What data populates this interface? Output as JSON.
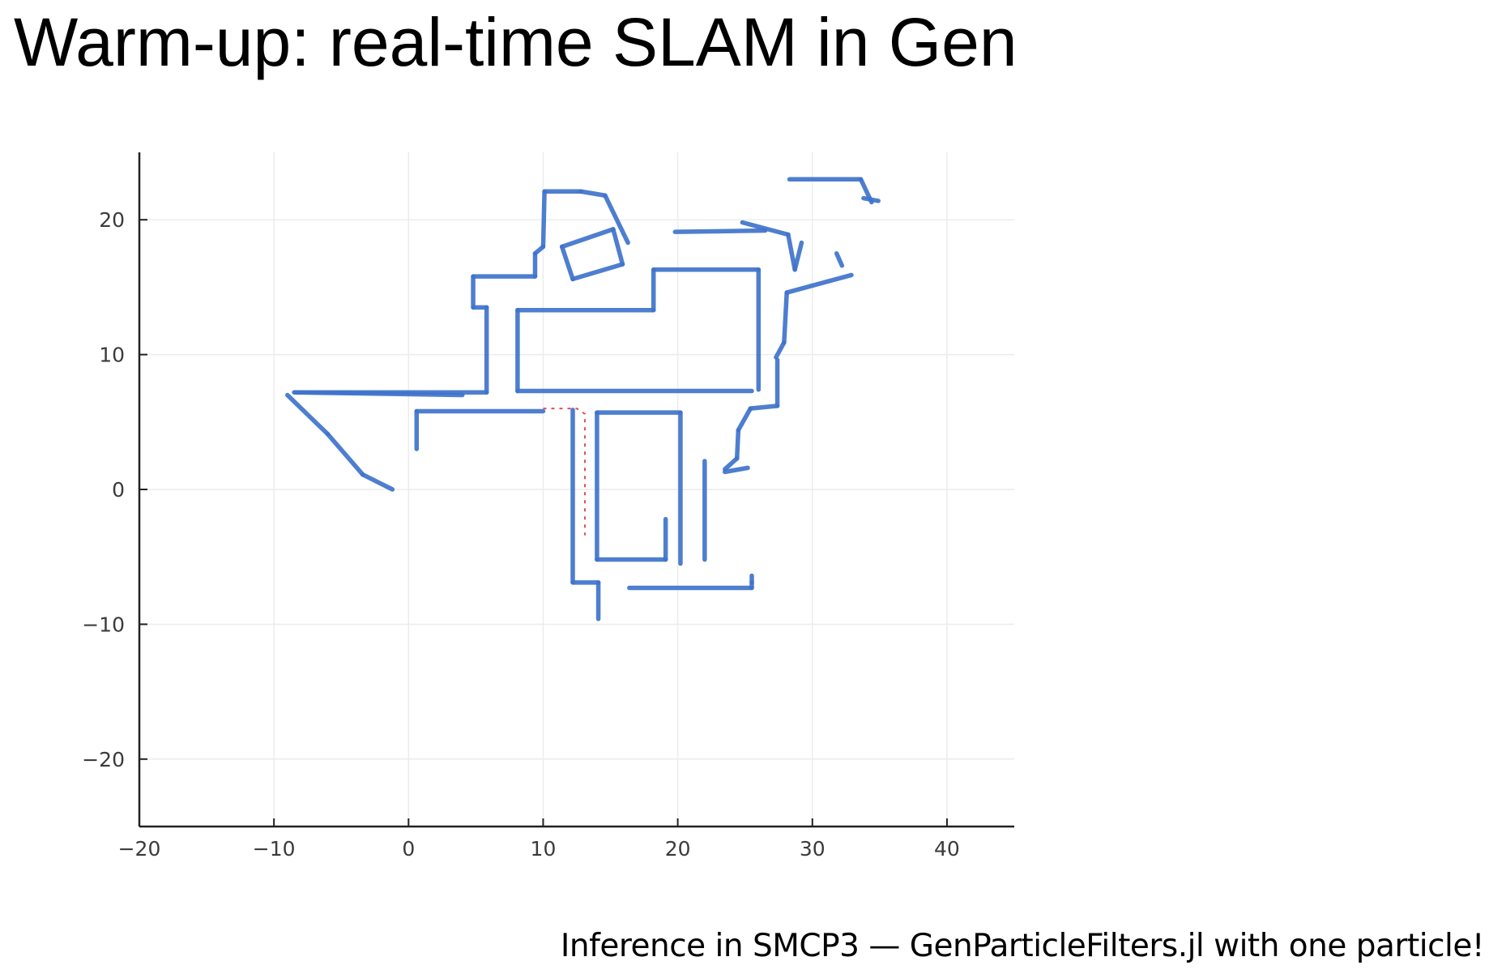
{
  "slide": {
    "title": "Warm-up: real-time SLAM in Gen",
    "caption": "Inference in SMCP3 — GenParticleFilters.jl with one particle!"
  },
  "colors": {
    "map_walls": "#3f74cc",
    "trajectory": "#e05050",
    "axis": "#222222",
    "grid": "#ececec"
  },
  "chart_data": {
    "type": "scatter",
    "title": "",
    "xlabel": "",
    "ylabel": "",
    "xlim": [
      -20,
      45
    ],
    "ylim": [
      -25,
      25
    ],
    "grid": true,
    "legend": "none",
    "x_ticks": [
      -20,
      -10,
      0,
      10,
      20,
      30,
      40
    ],
    "y_ticks": [
      -20,
      -10,
      0,
      10,
      20
    ],
    "x_tick_labels": [
      "−20",
      "−10",
      "0",
      "10",
      "20",
      "30",
      "40"
    ],
    "y_tick_labels": [
      "−20",
      "−10",
      "0",
      "10",
      "20"
    ],
    "series": [
      {
        "kind": "map_wall_segments",
        "segments": [
          [
            [
              -8.5,
              7.2
            ],
            [
              5.8,
              7.2
            ]
          ],
          [
            [
              5.8,
              7.2
            ],
            [
              5.8,
              13.5
            ]
          ],
          [
            [
              4.8,
              13.5
            ],
            [
              5.8,
              13.5
            ]
          ],
          [
            [
              4.8,
              13.5
            ],
            [
              4.8,
              15.8
            ]
          ],
          [
            [
              4.8,
              15.8
            ],
            [
              9.4,
              15.8
            ]
          ],
          [
            [
              9.4,
              15.8
            ],
            [
              9.4,
              17.5
            ]
          ],
          [
            [
              9.4,
              17.5
            ],
            [
              10.0,
              18.0
            ]
          ],
          [
            [
              10.0,
              18.0
            ],
            [
              10.1,
              22.1
            ]
          ],
          [
            [
              10.1,
              22.1
            ],
            [
              12.8,
              22.1
            ]
          ],
          [
            [
              12.8,
              22.1
            ],
            [
              14.6,
              21.8
            ]
          ],
          [
            [
              14.6,
              21.8
            ],
            [
              16.3,
              18.3
            ]
          ],
          [
            [
              11.4,
              18.0
            ],
            [
              15.2,
              19.3
            ]
          ],
          [
            [
              15.2,
              19.3
            ],
            [
              15.9,
              16.7
            ]
          ],
          [
            [
              15.9,
              16.7
            ],
            [
              12.2,
              15.6
            ]
          ],
          [
            [
              12.2,
              15.6
            ],
            [
              11.4,
              18.0
            ]
          ],
          [
            [
              8.1,
              13.3
            ],
            [
              18.2,
              13.3
            ]
          ],
          [
            [
              18.2,
              13.3
            ],
            [
              18.2,
              16.3
            ]
          ],
          [
            [
              18.2,
              16.3
            ],
            [
              26.0,
              16.3
            ]
          ],
          [
            [
              26.0,
              16.3
            ],
            [
              26.0,
              7.4
            ]
          ],
          [
            [
              8.1,
              13.3
            ],
            [
              8.1,
              7.3
            ]
          ],
          [
            [
              8.1,
              7.3
            ],
            [
              25.5,
              7.3
            ]
          ],
          [
            [
              0.6,
              5.8
            ],
            [
              10.0,
              5.8
            ]
          ],
          [
            [
              0.6,
              5.8
            ],
            [
              0.6,
              3.0
            ]
          ],
          [
            [
              12.2,
              5.9
            ],
            [
              12.2,
              -6.9
            ]
          ],
          [
            [
              12.2,
              -6.9
            ],
            [
              14.1,
              -6.9
            ]
          ],
          [
            [
              14.1,
              -6.9
            ],
            [
              14.1,
              -9.6
            ]
          ],
          [
            [
              14.0,
              5.7
            ],
            [
              20.2,
              5.7
            ]
          ],
          [
            [
              20.2,
              5.7
            ],
            [
              20.2,
              -5.5
            ]
          ],
          [
            [
              14.0,
              5.7
            ],
            [
              14.0,
              -5.2
            ]
          ],
          [
            [
              14.0,
              -5.2
            ],
            [
              19.1,
              -5.2
            ]
          ],
          [
            [
              19.1,
              -5.2
            ],
            [
              19.1,
              -2.2
            ]
          ],
          [
            [
              22.0,
              2.1
            ],
            [
              22.0,
              -5.2
            ]
          ],
          [
            [
              16.4,
              -7.3
            ],
            [
              25.5,
              -7.3
            ]
          ],
          [
            [
              25.5,
              -7.3
            ],
            [
              25.5,
              -6.9
            ]
          ],
          [
            [
              25.5,
              -6.9
            ],
            [
              25.5,
              -6.4
            ]
          ],
          [
            [
              28.1,
              14.6
            ],
            [
              32.9,
              15.9
            ]
          ],
          [
            [
              28.1,
              14.6
            ],
            [
              27.9,
              10.9
            ]
          ],
          [
            [
              27.9,
              10.9
            ],
            [
              27.3,
              9.8
            ]
          ],
          [
            [
              27.4,
              9.6
            ],
            [
              27.4,
              6.2
            ]
          ],
          [
            [
              27.4,
              6.2
            ],
            [
              25.4,
              6.0
            ]
          ],
          [
            [
              25.4,
              6.0
            ],
            [
              24.5,
              4.4
            ]
          ],
          [
            [
              24.5,
              4.4
            ],
            [
              24.4,
              2.3
            ]
          ],
          [
            [
              24.4,
              2.3
            ],
            [
              23.5,
              1.5
            ]
          ],
          [
            [
              25.2,
              1.6
            ],
            [
              23.5,
              1.3
            ]
          ],
          [
            [
              4.0,
              7.0
            ],
            [
              -8.4,
              7.2
            ]
          ],
          [
            [
              -9.0,
              7.0
            ],
            [
              -6.0,
              4.1
            ]
          ],
          [
            [
              -6.0,
              4.1
            ],
            [
              -3.4,
              1.1
            ]
          ],
          [
            [
              -3.4,
              1.1
            ],
            [
              -1.2,
              0.0
            ]
          ],
          [
            [
              19.8,
              19.1
            ],
            [
              26.5,
              19.2
            ]
          ],
          [
            [
              24.8,
              19.8
            ],
            [
              28.2,
              18.9
            ]
          ],
          [
            [
              28.2,
              18.9
            ],
            [
              28.7,
              16.3
            ]
          ],
          [
            [
              28.7,
              16.3
            ],
            [
              29.2,
              18.3
            ]
          ],
          [
            [
              31.8,
              17.5
            ],
            [
              32.2,
              16.6
            ]
          ],
          [
            [
              28.3,
              23.0
            ],
            [
              33.6,
              23.0
            ]
          ],
          [
            [
              33.6,
              23.0
            ],
            [
              34.4,
              21.3
            ]
          ],
          [
            [
              33.8,
              21.6
            ],
            [
              34.9,
              21.4
            ]
          ]
        ]
      },
      {
        "kind": "trajectory",
        "points": [
          [
            10.0,
            6.0
          ],
          [
            12.5,
            6.0
          ],
          [
            13.1,
            5.6
          ],
          [
            13.1,
            -3.4
          ]
        ]
      }
    ]
  }
}
